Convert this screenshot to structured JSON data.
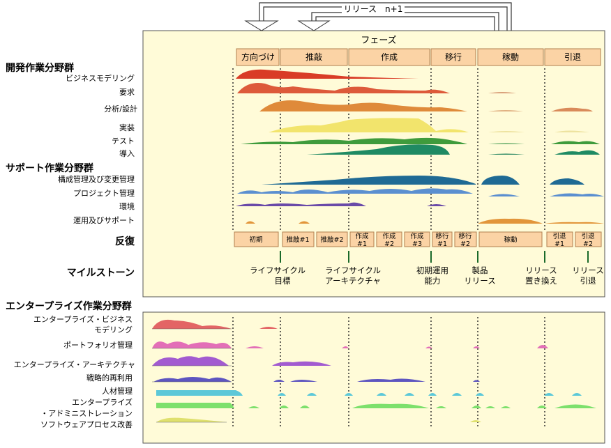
{
  "release_label": "リリース　n+1",
  "phases_title": "フェーズ",
  "phases": [
    "方向づけ",
    "推敲",
    "作成",
    "移行",
    "稼動",
    "引退"
  ],
  "dev_group_title": "開発作業分野群",
  "dev_disciplines": [
    "ビジネスモデリング",
    "要求",
    "分析/設計",
    "実装",
    "テスト",
    "導入"
  ],
  "support_group_title": "サポート作業分野群",
  "support_disciplines": [
    "構成管理及び変更管理",
    "プロジェクト管理",
    "環境",
    "運用及びサポート"
  ],
  "iterations_label": "反復",
  "iterations": [
    [
      "初期"
    ],
    [
      "推敲#1"
    ],
    [
      "推敲#2"
    ],
    [
      "作成",
      "#1"
    ],
    [
      "作成",
      "#2"
    ],
    [
      "作成",
      "#3"
    ],
    [
      "移行",
      "#1"
    ],
    [
      "移行",
      "#2"
    ],
    [
      "稼動"
    ],
    [
      "引退",
      "#1"
    ],
    [
      "引退",
      "#2"
    ]
  ],
  "milestones_label": "マイルストーン",
  "milestones": [
    [
      "ライフサイクル",
      "目標"
    ],
    [
      "ライフサイクル",
      "アーキテクチャ"
    ],
    [
      "初期運用",
      "能力"
    ],
    [
      "製品",
      "リリース"
    ],
    [
      "リリース",
      "置き換え"
    ],
    [
      "リリース",
      "引退"
    ]
  ],
  "enterprise_group_title": "エンタープライズ作業分野群",
  "enterprise_disciplines": [
    [
      "エンタープライズ・ビジネス",
      "モデリング"
    ],
    [
      "ポートフォリオ管理"
    ],
    [
      "エンタープライズ・アーキテクチャ"
    ],
    [
      "戦略的再利用"
    ],
    [
      "人材管理"
    ],
    [
      "エンタープライズ",
      "・アドミニストレーション"
    ],
    [
      "ソフトウェアプロセス改善"
    ]
  ],
  "colors": {
    "panel_bg": "#fffbd8",
    "phase_box": "#fbd3a5",
    "phase_border": "#b07f4e",
    "business_modeling": "#d93c26",
    "requirements": "#dd5a3a",
    "analysis": "#df8a3a",
    "implementation": "#f2e46c",
    "test": "#3f9b3c",
    "deployment": "#1f8a63",
    "config": "#1f6a94",
    "project_mgmt": "#5b8fd0",
    "environment": "#6a4aa8",
    "operations": "#e2953a",
    "ent_business": "#e36565",
    "portfolio": "#e36fb7",
    "ent_arch": "#a25bd0",
    "reuse": "#5d55c0",
    "people": "#5cc8d8",
    "admin": "#7de06c",
    "spi": "#dfe06e"
  }
}
